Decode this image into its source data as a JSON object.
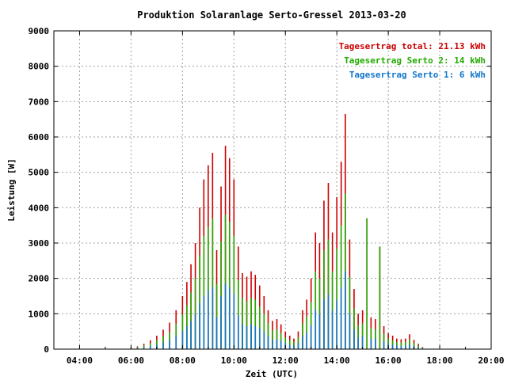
{
  "chart_data": {
    "type": "bar",
    "title": "Produktion Solaranlage Serto-Gressel 2013-03-20",
    "xlabel": "Zeit (UTC)",
    "ylabel": "Leistung [W]",
    "xlim": [
      3,
      20
    ],
    "ylim": [
      0,
      9000
    ],
    "x_ticks": [
      "04:00",
      "06:00",
      "08:00",
      "10:00",
      "12:00",
      "14:00",
      "16:00",
      "18:00",
      "20:00"
    ],
    "y_ticks": [
      "0",
      "1000",
      "2000",
      "3000",
      "4000",
      "5000",
      "6000",
      "7000",
      "8000",
      "9000"
    ],
    "grid": true,
    "legend_position": "top-right",
    "legend": [
      {
        "label": "Tagesertrag total: 21.13 kWh",
        "color": "#cc0000"
      },
      {
        "label": "Tagesertrag Serto 2: 14 kWh",
        "color": "#22aa00"
      },
      {
        "label": "Tagesertrag Serto 1: 6 kWh",
        "color": "#1177cc"
      }
    ],
    "series_colors": {
      "total": "#cc0000",
      "serto2": "#22aa00",
      "serto1": "#1177cc"
    },
    "series_keys": [
      "time_h",
      "total_W",
      "serto2_W",
      "serto1_W"
    ],
    "points": [
      [
        6.0,
        40,
        30,
        10
      ],
      [
        6.25,
        80,
        55,
        25
      ],
      [
        6.5,
        150,
        100,
        50
      ],
      [
        6.75,
        250,
        165,
        85
      ],
      [
        7.0,
        380,
        250,
        130
      ],
      [
        7.25,
        550,
        360,
        190
      ],
      [
        7.5,
        750,
        490,
        260
      ],
      [
        7.75,
        1100,
        720,
        380
      ],
      [
        8.0,
        1500,
        980,
        520
      ],
      [
        8.17,
        1900,
        1250,
        650
      ],
      [
        8.33,
        2400,
        1600,
        800
      ],
      [
        8.5,
        3000,
        2000,
        1000
      ],
      [
        8.67,
        4000,
        2650,
        1300
      ],
      [
        8.83,
        4800,
        3200,
        1500
      ],
      [
        9.0,
        5200,
        3450,
        1650
      ],
      [
        9.17,
        5550,
        3700,
        1750
      ],
      [
        9.33,
        2800,
        1850,
        900
      ],
      [
        9.5,
        4600,
        3050,
        1500
      ],
      [
        9.67,
        5750,
        3800,
        1850
      ],
      [
        9.83,
        5400,
        3600,
        1750
      ],
      [
        10.0,
        4800,
        3200,
        1550
      ],
      [
        10.17,
        2900,
        1950,
        950
      ],
      [
        10.33,
        2150,
        1450,
        700
      ],
      [
        10.5,
        2050,
        1350,
        650
      ],
      [
        10.67,
        2200,
        1450,
        700
      ],
      [
        10.83,
        2100,
        1400,
        650
      ],
      [
        11.0,
        1800,
        1200,
        600
      ],
      [
        11.17,
        1500,
        1000,
        500
      ],
      [
        11.33,
        1100,
        730,
        370
      ],
      [
        11.5,
        800,
        530,
        270
      ],
      [
        11.67,
        850,
        560,
        280
      ],
      [
        11.83,
        700,
        460,
        240
      ],
      [
        12.0,
        500,
        330,
        170
      ],
      [
        12.17,
        380,
        250,
        130
      ],
      [
        12.33,
        300,
        200,
        100
      ],
      [
        12.5,
        500,
        330,
        170
      ],
      [
        12.67,
        1100,
        730,
        370
      ],
      [
        12.83,
        1400,
        930,
        470
      ],
      [
        13.0,
        2000,
        1330,
        670
      ],
      [
        13.17,
        3300,
        2200,
        1100
      ],
      [
        13.33,
        3000,
        2000,
        1000
      ],
      [
        13.5,
        4200,
        2800,
        1400
      ],
      [
        13.67,
        4700,
        3100,
        1550
      ],
      [
        13.83,
        3300,
        2200,
        1100
      ],
      [
        14.0,
        4300,
        2850,
        1400
      ],
      [
        14.17,
        5300,
        3500,
        1750
      ],
      [
        14.33,
        6650,
        4400,
        2200
      ],
      [
        14.5,
        3100,
        2050,
        1000
      ],
      [
        14.67,
        1700,
        1150,
        550
      ],
      [
        14.83,
        1000,
        670,
        330
      ],
      [
        15.0,
        1100,
        730,
        370
      ],
      [
        15.17,
        3700,
        3700,
        0
      ],
      [
        15.33,
        900,
        600,
        300
      ],
      [
        15.5,
        850,
        560,
        280
      ],
      [
        15.67,
        2900,
        2900,
        0
      ],
      [
        15.83,
        650,
        430,
        220
      ],
      [
        16.0,
        450,
        300,
        150
      ],
      [
        16.17,
        380,
        250,
        130
      ],
      [
        16.33,
        300,
        200,
        100
      ],
      [
        16.5,
        280,
        190,
        90
      ],
      [
        16.67,
        300,
        200,
        100
      ],
      [
        16.83,
        420,
        280,
        140
      ],
      [
        17.0,
        260,
        175,
        85
      ],
      [
        17.17,
        150,
        100,
        50
      ],
      [
        17.33,
        60,
        40,
        20
      ]
    ]
  }
}
